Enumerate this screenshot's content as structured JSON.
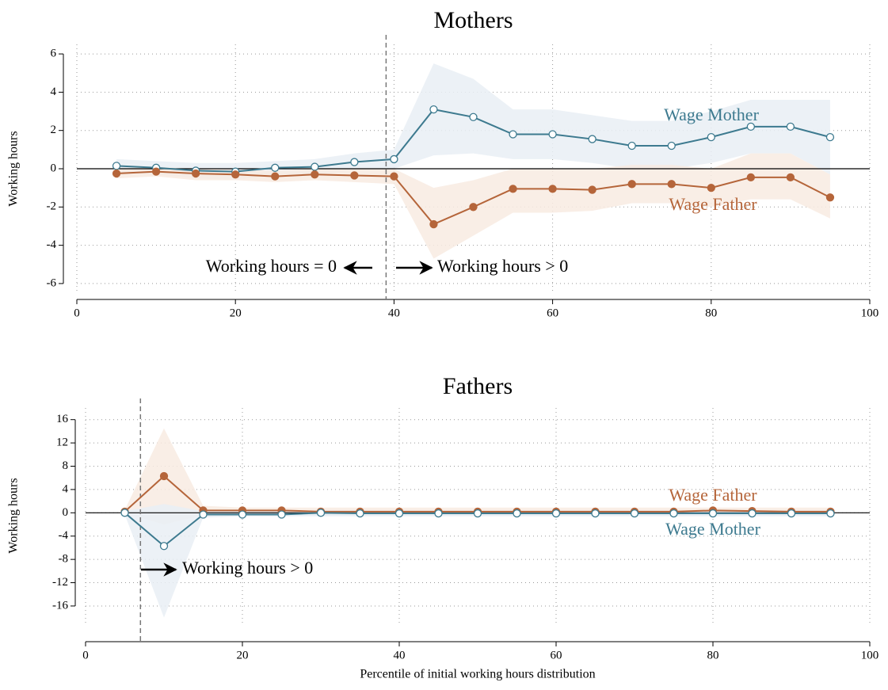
{
  "chart_data": [
    {
      "type": "line",
      "title": "Mothers",
      "y_label": "Working hours",
      "x": [
        5,
        10,
        15,
        20,
        25,
        30,
        35,
        40,
        45,
        50,
        55,
        60,
        65,
        70,
        75,
        80,
        85,
        90,
        95
      ],
      "xlim": [
        0,
        100
      ],
      "xticks": [
        0,
        20,
        40,
        60,
        80,
        100
      ],
      "ylim": [
        -6.5,
        6.5
      ],
      "yticks": [
        -6,
        -4,
        -2,
        0,
        2,
        4,
        6
      ],
      "grid": true,
      "vline": 39,
      "annotations": [
        "Working hours = 0",
        "Working hours > 0"
      ],
      "series": [
        {
          "name": "Wage Mother",
          "color": "#3d7a8f",
          "band_color": "#e9eff5",
          "marker": "hollow",
          "values": [
            0.15,
            0.05,
            -0.1,
            -0.15,
            0.05,
            0.1,
            0.35,
            0.5,
            3.1,
            2.7,
            1.8,
            1.8,
            1.55,
            1.2,
            1.2,
            1.65,
            2.2,
            2.2,
            1.65
          ],
          "lower": [
            -0.2,
            -0.3,
            -0.5,
            -0.6,
            -0.3,
            -0.3,
            -0.1,
            0.0,
            0.7,
            0.8,
            0.5,
            0.5,
            0.3,
            0.0,
            0.0,
            0.3,
            0.8,
            0.8,
            -0.3
          ],
          "upper": [
            0.5,
            0.4,
            0.3,
            0.3,
            0.4,
            0.5,
            0.8,
            1.0,
            5.5,
            4.7,
            3.1,
            3.1,
            2.8,
            2.5,
            2.5,
            3.0,
            3.6,
            3.6,
            3.6
          ]
        },
        {
          "name": "Wage Father",
          "color": "#b5653a",
          "band_color": "#f8ebe2",
          "marker": "filled",
          "values": [
            -0.25,
            -0.15,
            -0.25,
            -0.3,
            -0.4,
            -0.3,
            -0.35,
            -0.4,
            -2.9,
            -2.0,
            -1.05,
            -1.05,
            -1.1,
            -0.8,
            -0.8,
            -1.0,
            -0.45,
            -0.45,
            -1.5
          ],
          "lower": [
            -0.5,
            -0.4,
            -0.6,
            -0.6,
            -0.7,
            -0.6,
            -0.7,
            -0.8,
            -4.7,
            -3.5,
            -2.3,
            -2.3,
            -2.2,
            -1.8,
            -1.8,
            -2.0,
            -1.6,
            -1.6,
            -2.6
          ],
          "upper": [
            0.0,
            0.1,
            0.0,
            -0.05,
            -0.1,
            0.0,
            0.0,
            0.0,
            -1.0,
            -0.6,
            0.0,
            0.0,
            0.0,
            0.2,
            0.2,
            0.0,
            0.8,
            0.8,
            -0.3
          ]
        }
      ]
    },
    {
      "type": "line",
      "title": "Fathers",
      "y_label": "Working hours",
      "x_label": "Percentile of initial working hours distribution",
      "x": [
        5,
        10,
        15,
        20,
        25,
        30,
        35,
        40,
        45,
        50,
        55,
        60,
        65,
        70,
        75,
        80,
        85,
        90,
        95
      ],
      "xlim": [
        0,
        100
      ],
      "xticks": [
        0,
        20,
        40,
        60,
        80,
        100
      ],
      "ylim": [
        -19,
        18
      ],
      "yticks": [
        -16,
        -12,
        -8,
        -4,
        0,
        4,
        8,
        12,
        16
      ],
      "grid": true,
      "vline": 7,
      "annotations": [
        "Working hours > 0"
      ],
      "series": [
        {
          "name": "Wage Father",
          "color": "#b5653a",
          "band_color": "#f8ebe2",
          "marker": "filled",
          "values": [
            0.2,
            6.3,
            0.4,
            0.4,
            0.4,
            0.2,
            0.2,
            0.2,
            0.2,
            0.2,
            0.2,
            0.2,
            0.2,
            0.2,
            0.2,
            0.4,
            0.3,
            0.2,
            0.2
          ],
          "lower": [
            -0.1,
            -2,
            -0.4,
            -0.4,
            -0.4,
            -0.4,
            -0.4,
            -0.4,
            -0.4,
            -0.4,
            -0.4,
            -0.4,
            -0.4,
            -0.4,
            -0.4,
            -0.4,
            -0.4,
            -0.4,
            -0.4
          ],
          "upper": [
            0.5,
            14.5,
            1.2,
            0.9,
            0.9,
            0.9,
            0.9,
            0.9,
            0.9,
            0.9,
            0.9,
            0.9,
            0.9,
            0.9,
            0.9,
            0.9,
            0.9,
            0.9,
            0.9
          ]
        },
        {
          "name": "Wage Mother",
          "color": "#3d7a8f",
          "band_color": "#e9eff5",
          "marker": "hollow",
          "values": [
            0,
            -5.7,
            -0.3,
            -0.3,
            -0.3,
            0,
            -0.1,
            -0.1,
            -0.1,
            -0.1,
            -0.1,
            -0.1,
            -0.1,
            -0.1,
            -0.1,
            -0.1,
            -0.1,
            -0.1,
            -0.1
          ],
          "lower": [
            -0.3,
            -18,
            -0.8,
            -0.6,
            -0.6,
            -0.6,
            -0.6,
            -0.6,
            -0.6,
            -0.6,
            -0.6,
            -0.6,
            -0.6,
            -0.6,
            -0.6,
            -0.6,
            -0.6,
            -0.6,
            -0.6
          ],
          "upper": [
            0.3,
            1.5,
            0.3,
            0.4,
            0.4,
            0.4,
            0.4,
            0.4,
            0.4,
            0.4,
            0.4,
            0.4,
            0.4,
            0.4,
            0.4,
            0.4,
            0.4,
            0.4,
            0.4
          ]
        }
      ]
    }
  ]
}
